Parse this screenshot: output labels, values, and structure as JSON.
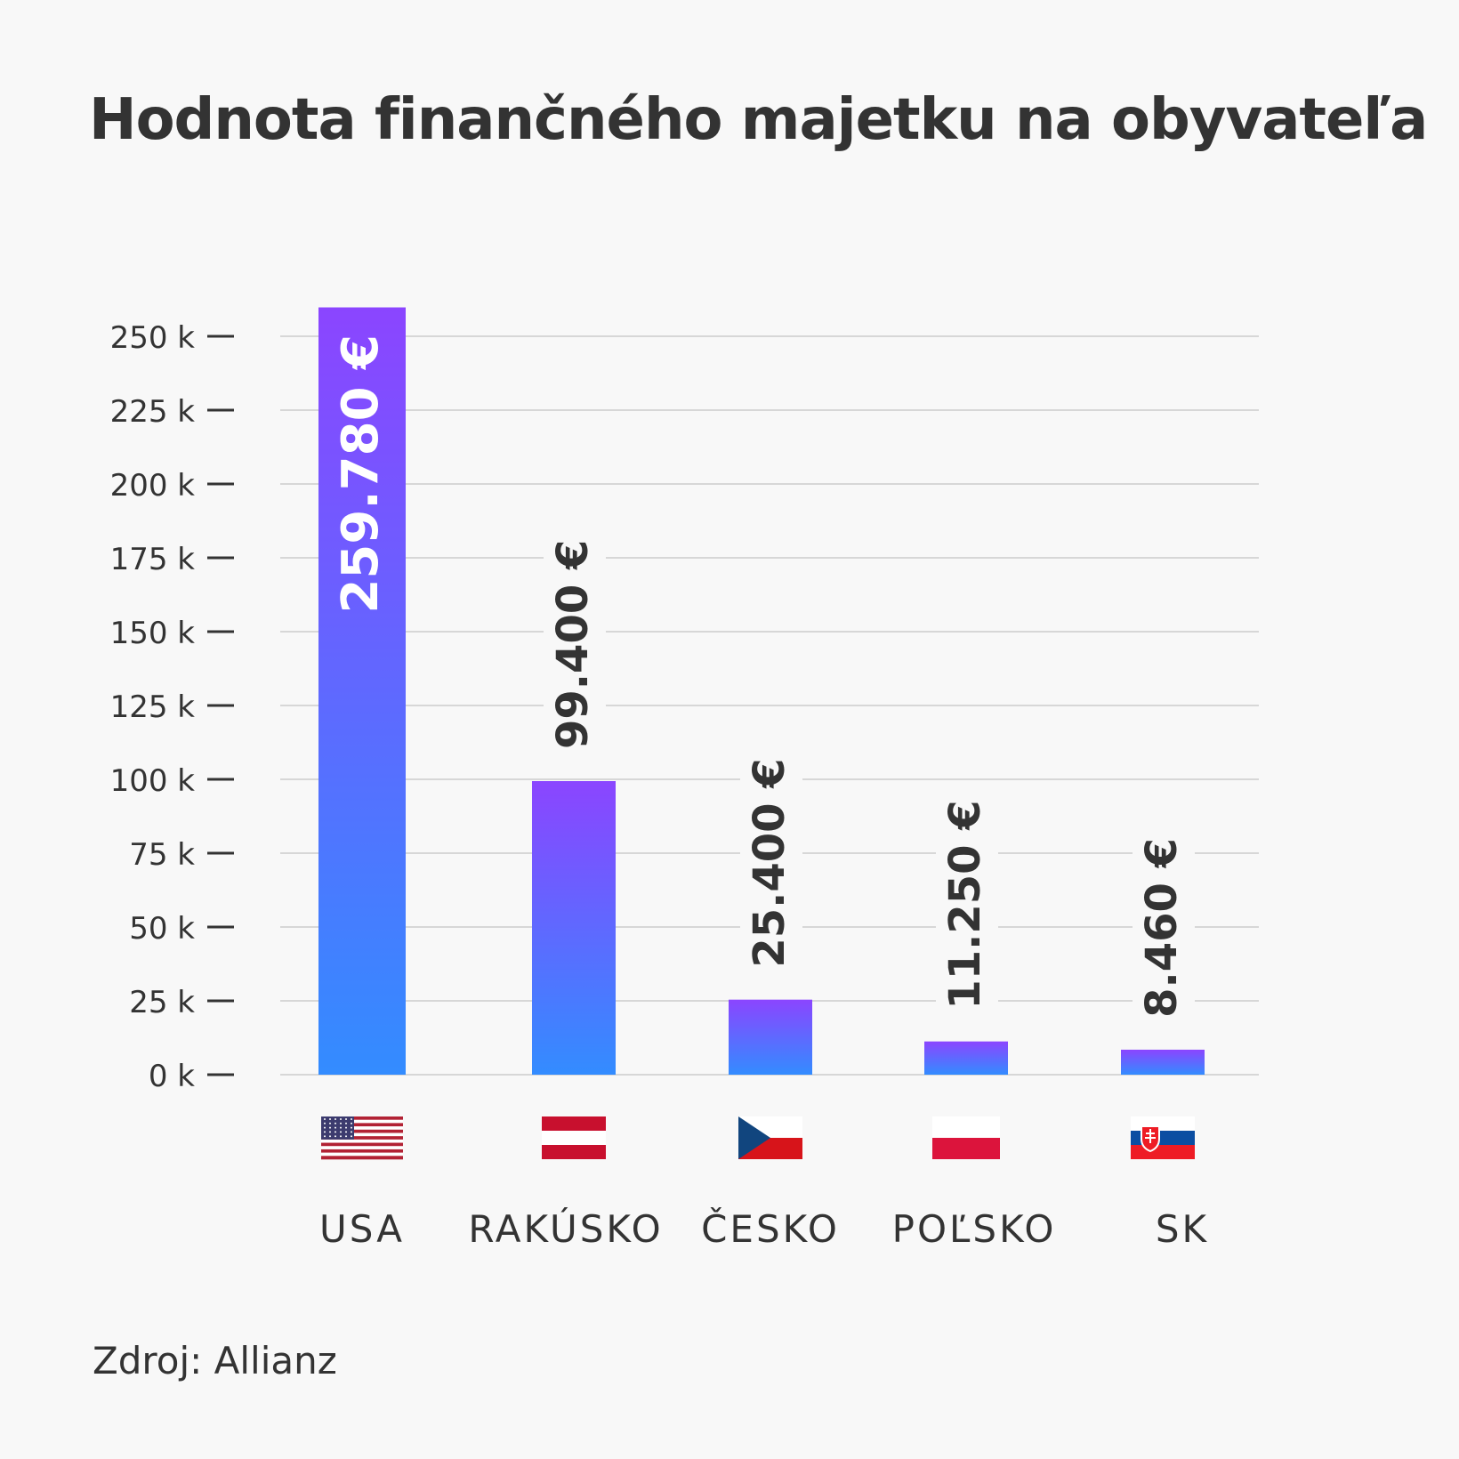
{
  "chart_data": {
    "type": "bar",
    "title": "Hodnota finančného majetku na obyvateľa",
    "categories": [
      "USA",
      "RAKÚSKO",
      "ČESKO",
      "POĽSKO",
      "SK"
    ],
    "values": [
      259780,
      99400,
      25400,
      11250,
      8460
    ],
    "value_labels": [
      "259.780 €",
      "99.400 €",
      "25.400 €",
      "11.250 €",
      "8.460 €"
    ],
    "flags": [
      "flag-usa-icon",
      "flag-austria-icon",
      "flag-czechia-icon",
      "flag-poland-icon",
      "flag-slovakia-icon"
    ],
    "yticks": [
      0,
      25000,
      50000,
      75000,
      100000,
      125000,
      150000,
      175000,
      200000,
      225000,
      250000
    ],
    "ytick_labels": [
      "0 k",
      "25 k",
      "50 k",
      "75 k",
      "100 k",
      "125 k",
      "150 k",
      "175 k",
      "200 k",
      "225 k",
      "250 k"
    ],
    "ylim": [
      0,
      260000
    ],
    "grid": true,
    "xlabel": "",
    "ylabel": "",
    "colors": {
      "bar_top": "#8b45ff",
      "bar_bottom": "#338cff",
      "grid": "#cccccc",
      "text": "#333333",
      "label_inside": "#ffffff"
    }
  },
  "source": "Zdroj: Allianz"
}
